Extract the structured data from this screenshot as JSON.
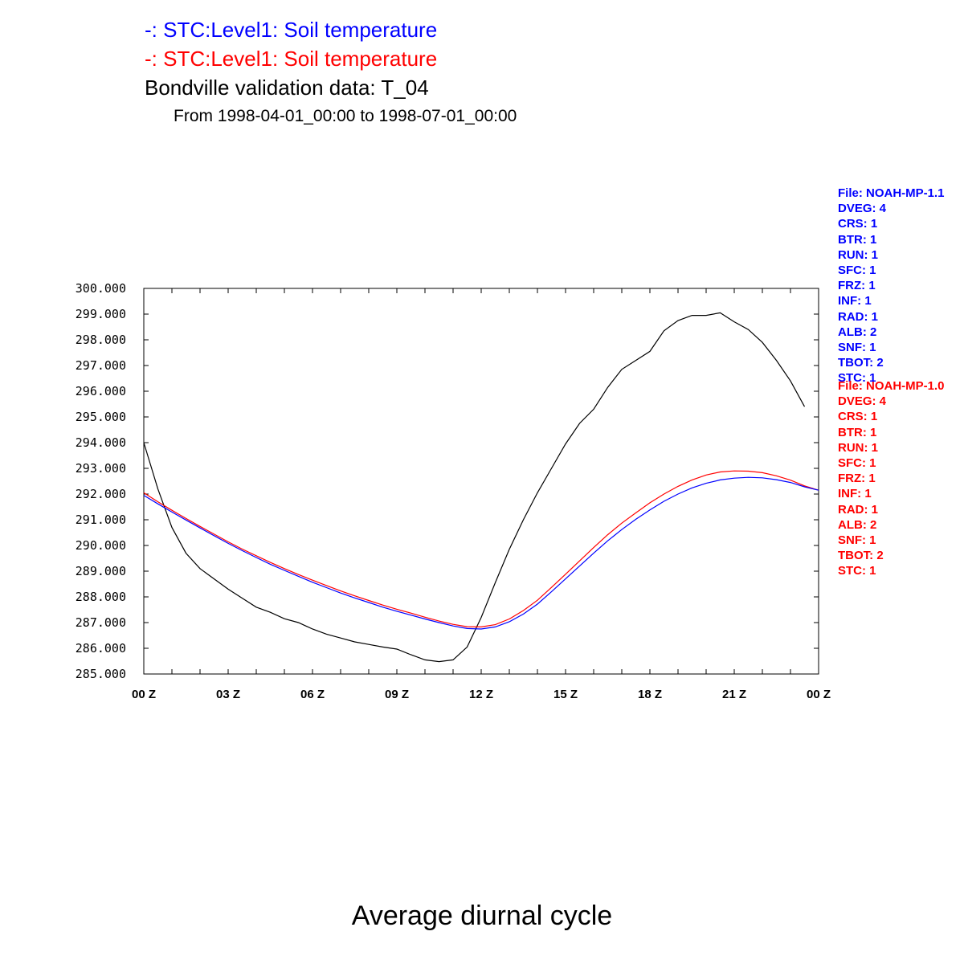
{
  "titles": {
    "line1": "-: STC:Level1: Soil temperature",
    "line2": "-: STC:Level1: Soil temperature",
    "line3": "Bondville validation data: T_04",
    "subtitle": "From 1998-04-01_00:00 to 1998-07-01_00:00",
    "bottom": "Average diurnal cycle"
  },
  "legend_blue": [
    "File: NOAH-MP-1.1",
    "DVEG: 4",
    "CRS: 1",
    "BTR: 1",
    "RUN: 1",
    "SFC: 1",
    "FRZ: 1",
    "INF: 1",
    "RAD: 1",
    "ALB: 2",
    "SNF: 1",
    "TBOT: 2",
    "STC: 1"
  ],
  "legend_red": [
    "File: NOAH-MP-1.0",
    "DVEG: 4",
    "CRS: 1",
    "BTR: 1",
    "RUN: 1",
    "SFC: 1",
    "FRZ: 1",
    "INF: 1",
    "RAD: 1",
    "ALB: 2",
    "SNF: 1",
    "TBOT: 2",
    "STC: 1"
  ],
  "colors": {
    "blue": "#0000ff",
    "red": "#ff0000",
    "black": "#000000"
  },
  "chart_data": {
    "type": "line",
    "x_range": [
      0,
      24
    ],
    "ylim": [
      285,
      300
    ],
    "y_ticks": [
      "285.000",
      "286.000",
      "287.000",
      "288.000",
      "289.000",
      "290.000",
      "291.000",
      "292.000",
      "293.000",
      "294.000",
      "295.000",
      "296.000",
      "297.000",
      "298.000",
      "299.000",
      "300.000"
    ],
    "x_ticks": [
      {
        "value": 0,
        "label": "00 Z"
      },
      {
        "value": 3,
        "label": "03 Z"
      },
      {
        "value": 6,
        "label": "06 Z"
      },
      {
        "value": 9,
        "label": "09 Z"
      },
      {
        "value": 12,
        "label": "12 Z"
      },
      {
        "value": 15,
        "label": "15 Z"
      },
      {
        "value": 18,
        "label": "18 Z"
      },
      {
        "value": 21,
        "label": "21 Z"
      },
      {
        "value": 24,
        "label": "00 Z"
      }
    ],
    "series": [
      {
        "color": "#000000",
        "x": [
          0,
          0.5,
          1,
          1.5,
          2,
          2.5,
          3,
          3.5,
          4,
          4.5,
          5,
          5.5,
          6,
          6.5,
          7,
          7.5,
          8,
          8.5,
          9,
          9.5,
          10,
          10.5,
          11,
          11.5,
          12,
          12.5,
          13,
          13.5,
          14,
          14.5,
          15,
          15.5,
          16,
          16.5,
          17,
          17.5,
          18,
          18.5,
          19,
          19.5,
          20,
          20.5,
          21,
          21.5,
          22,
          22.5,
          23,
          23.5
        ],
        "y": [
          294.0,
          292.2,
          290.7,
          289.7,
          289.1,
          288.7,
          288.3,
          287.95,
          287.6,
          287.4,
          287.15,
          287.0,
          286.75,
          286.55,
          286.4,
          286.25,
          286.15,
          286.05,
          285.97,
          285.75,
          285.55,
          285.48,
          285.55,
          286.05,
          287.2,
          288.55,
          289.85,
          291.0,
          292.05,
          293.0,
          293.95,
          294.75,
          295.3,
          296.15,
          296.85,
          297.2,
          297.55,
          298.35,
          298.75,
          298.95,
          298.95,
          299.05,
          298.7,
          298.4,
          297.9,
          297.2,
          296.4,
          295.4
        ]
      },
      {
        "color": "#ff0000",
        "x": [
          0,
          0.5,
          1,
          1.5,
          2,
          2.5,
          3,
          3.5,
          4,
          4.5,
          5,
          5.5,
          6,
          6.5,
          7,
          7.5,
          8,
          8.5,
          9,
          9.5,
          10,
          10.5,
          11,
          11.5,
          12,
          12.5,
          13,
          13.5,
          14,
          14.5,
          15,
          15.5,
          16,
          16.5,
          17,
          17.5,
          18,
          18.5,
          19,
          19.5,
          20,
          20.5,
          21,
          21.5,
          22,
          22.5,
          23,
          23.5,
          24
        ],
        "y": [
          292.05,
          291.7,
          291.37,
          291.05,
          290.74,
          290.44,
          290.14,
          289.86,
          289.6,
          289.34,
          289.1,
          288.87,
          288.65,
          288.44,
          288.23,
          288.04,
          287.86,
          287.68,
          287.52,
          287.37,
          287.21,
          287.06,
          286.93,
          286.84,
          286.83,
          286.92,
          287.14,
          287.47,
          287.87,
          288.37,
          288.88,
          289.4,
          289.92,
          290.42,
          290.87,
          291.27,
          291.66,
          292.0,
          292.3,
          292.55,
          292.74,
          292.86,
          292.9,
          292.89,
          292.83,
          292.71,
          292.54,
          292.32,
          292.15
        ]
      },
      {
        "color": "#0000ff",
        "x": [
          0,
          0.5,
          1,
          1.5,
          2,
          2.5,
          3,
          3.5,
          4,
          4.5,
          5,
          5.5,
          6,
          6.5,
          7,
          7.5,
          8,
          8.5,
          9,
          9.5,
          10,
          10.5,
          11,
          11.5,
          12,
          12.5,
          13,
          13.5,
          14,
          14.5,
          15,
          15.5,
          16,
          16.5,
          17,
          17.5,
          18,
          18.5,
          19,
          19.5,
          20,
          20.5,
          21,
          21.5,
          22,
          22.5,
          23,
          23.5,
          24
        ],
        "y": [
          291.95,
          291.62,
          291.3,
          290.99,
          290.68,
          290.38,
          290.08,
          289.8,
          289.53,
          289.27,
          289.03,
          288.8,
          288.57,
          288.36,
          288.15,
          287.96,
          287.78,
          287.6,
          287.44,
          287.29,
          287.14,
          287.0,
          286.87,
          286.77,
          286.75,
          286.83,
          287.03,
          287.33,
          287.72,
          288.2,
          288.7,
          289.2,
          289.7,
          290.18,
          290.62,
          291.02,
          291.38,
          291.72,
          292.0,
          292.24,
          292.42,
          292.55,
          292.62,
          292.65,
          292.63,
          292.56,
          292.45,
          292.28,
          292.15
        ]
      }
    ]
  }
}
